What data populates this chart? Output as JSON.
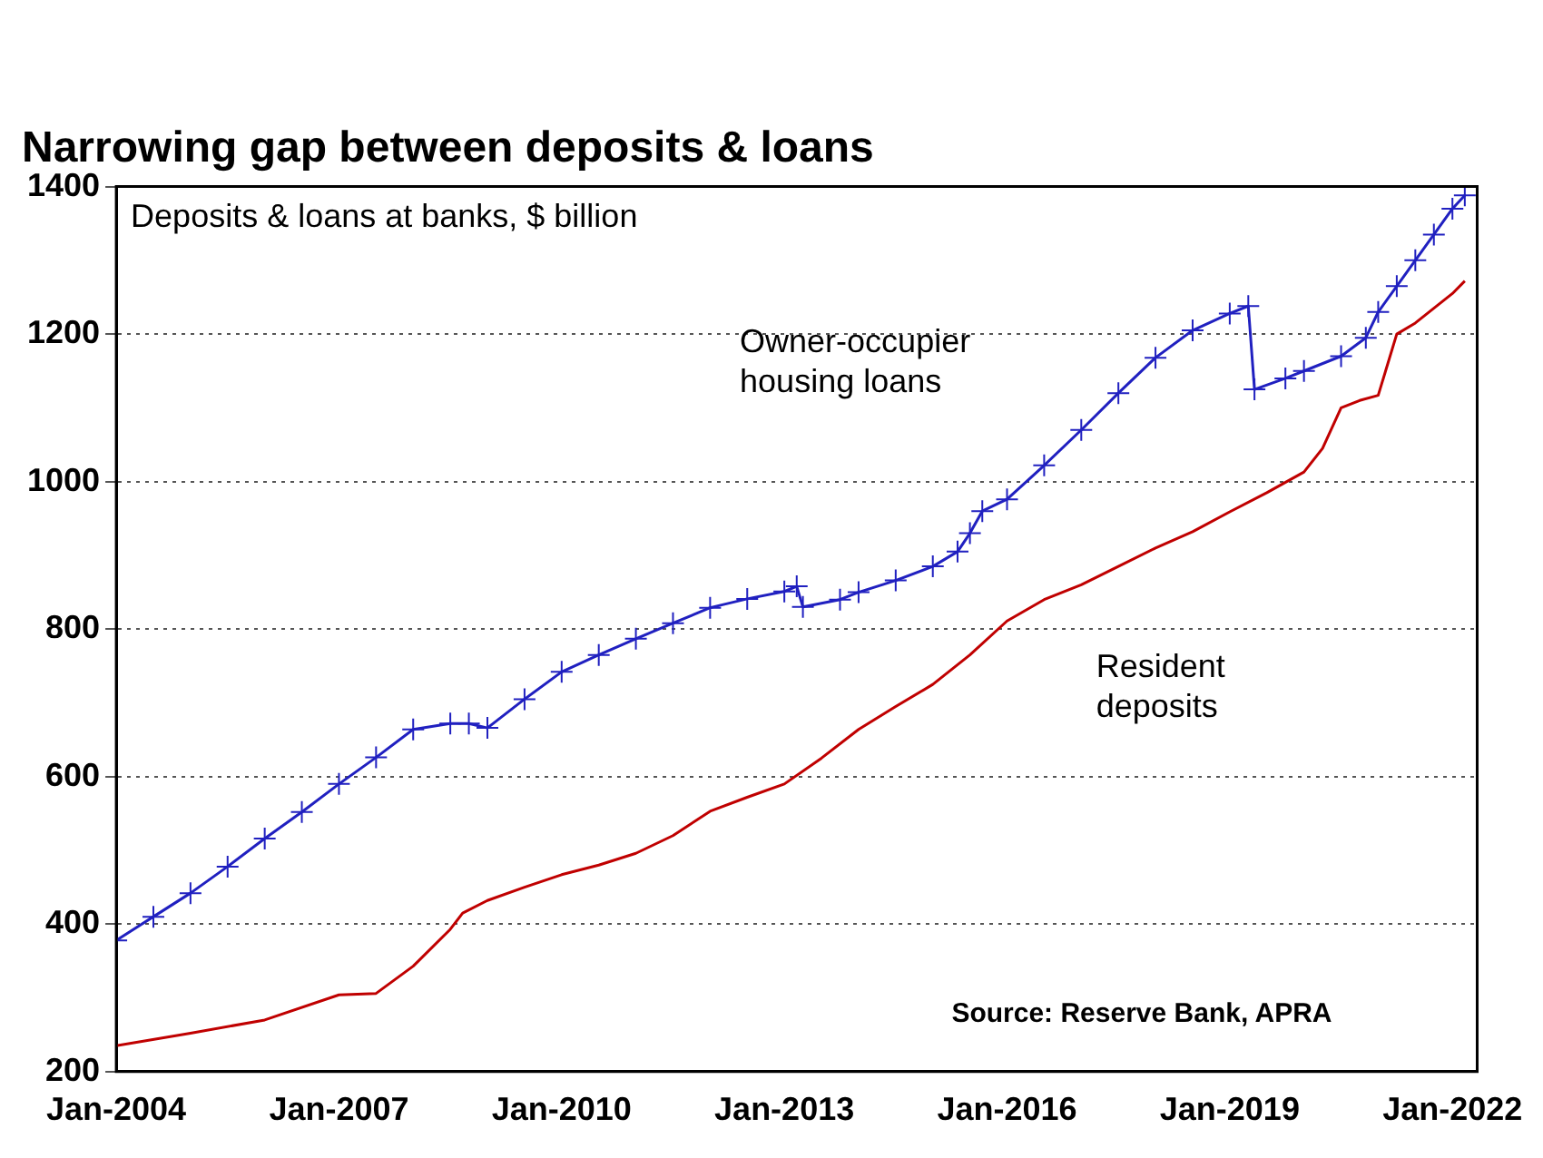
{
  "chart_data": {
    "type": "line",
    "title": "Narrowing gap between deposits & loans",
    "annotations": [
      "Deposits & loans at banks, $ billion",
      "Source: Reserve Bank, APRA"
    ],
    "xlim": [
      "2004-01",
      "2022-05"
    ],
    "xticks": [
      {
        "value": "2004-01",
        "label": "Jan-2004"
      },
      {
        "value": "2007-01",
        "label": "Jan-2007"
      },
      {
        "value": "2010-01",
        "label": "Jan-2010"
      },
      {
        "value": "2013-01",
        "label": "Jan-2013"
      },
      {
        "value": "2016-01",
        "label": "Jan-2016"
      },
      {
        "value": "2019-01",
        "label": "Jan-2019"
      },
      {
        "value": "2022-01",
        "label": "Jan-2022"
      }
    ],
    "ylim": [
      200,
      1400
    ],
    "yticks": [
      200,
      400,
      600,
      800,
      1000,
      1200,
      1400
    ],
    "grid": "y",
    "legend": false,
    "series": [
      {
        "name": "Owner-occupier housing loans",
        "color": "#2020c0",
        "marker": "cross",
        "x": [
          "2004-01",
          "2004-07",
          "2005-01",
          "2005-07",
          "2006-01",
          "2006-07",
          "2007-01",
          "2007-07",
          "2008-01",
          "2008-07",
          "2008-10",
          "2009-01",
          "2009-07",
          "2010-01",
          "2010-07",
          "2011-01",
          "2011-07",
          "2012-01",
          "2012-07",
          "2013-01",
          "2013-03",
          "2013-04",
          "2013-10",
          "2014-01",
          "2014-07",
          "2015-01",
          "2015-05",
          "2015-07",
          "2015-09",
          "2016-01",
          "2016-07",
          "2017-01",
          "2017-07",
          "2018-01",
          "2018-07",
          "2019-01",
          "2019-04",
          "2019-05",
          "2019-10",
          "2020-01",
          "2020-07",
          "2020-11",
          "2021-01",
          "2021-04",
          "2021-07",
          "2021-10",
          "2022-01",
          "2022-03"
        ],
        "values": [
          378,
          410,
          442,
          478,
          516,
          552,
          590,
          626,
          664,
          672,
          672,
          666,
          705,
          742,
          765,
          787,
          808,
          829,
          841,
          851,
          858,
          830,
          840,
          850,
          866,
          885,
          905,
          930,
          960,
          976,
          1022,
          1070,
          1120,
          1168,
          1205,
          1228,
          1238,
          1125,
          1140,
          1150,
          1170,
          1195,
          1230,
          1265,
          1300,
          1335,
          1370,
          1388
        ]
      },
      {
        "name": "Resident deposits",
        "color": "#c00000",
        "marker": "none",
        "x": [
          "2004-01",
          "2005-01",
          "2006-01",
          "2007-01",
          "2007-07",
          "2008-01",
          "2008-07",
          "2008-09",
          "2009-01",
          "2009-07",
          "2010-01",
          "2010-07",
          "2011-01",
          "2011-07",
          "2012-01",
          "2012-07",
          "2013-01",
          "2013-07",
          "2014-01",
          "2014-07",
          "2015-01",
          "2015-07",
          "2016-01",
          "2016-07",
          "2017-01",
          "2017-07",
          "2018-01",
          "2018-07",
          "2019-01",
          "2019-07",
          "2020-01",
          "2020-04",
          "2020-07",
          "2020-10",
          "2021-01",
          "2021-04",
          "2021-07",
          "2022-01",
          "2022-03"
        ],
        "values": [
          235,
          252,
          270,
          304,
          306,
          343,
          393,
          415,
          432,
          450,
          467,
          480,
          496,
          520,
          553,
          572,
          590,
          625,
          664,
          695,
          725,
          765,
          811,
          840,
          860,
          885,
          910,
          932,
          959,
          985,
          1013,
          1045,
          1100,
          1110,
          1117,
          1200,
          1215,
          1255,
          1272
        ]
      }
    ]
  }
}
